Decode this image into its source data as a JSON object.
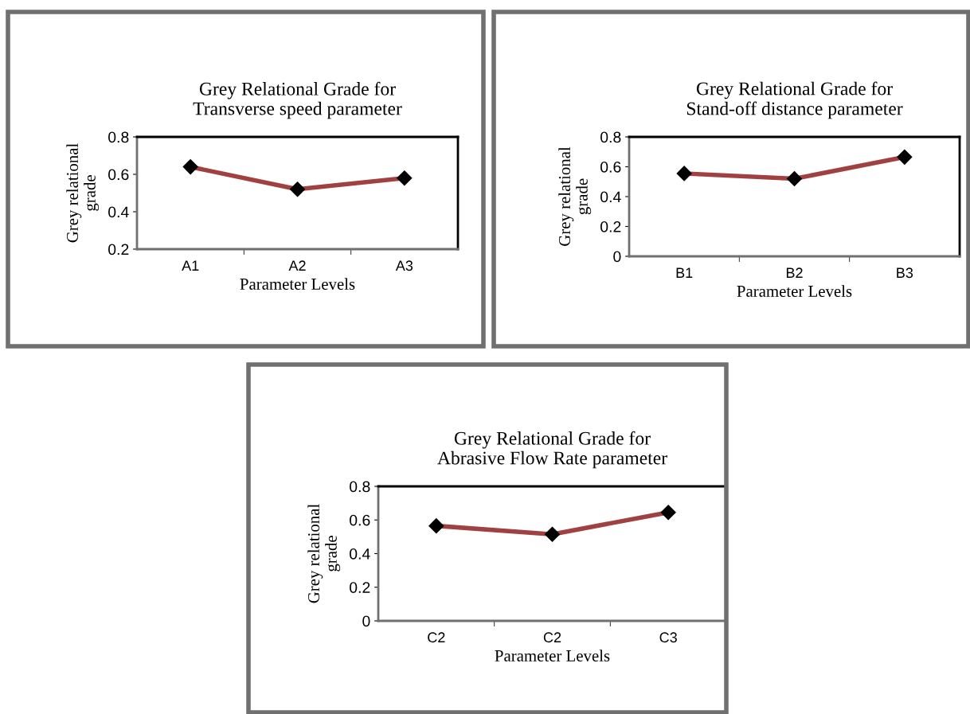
{
  "chart_data": [
    {
      "type": "line",
      "title": "Grey Relational Grade for\nTransverse speed parameter",
      "xlabel": "Parameter Levels",
      "ylabel": "Grey relational\ngrade",
      "categories": [
        "A1",
        "A2",
        "A3"
      ],
      "series": [
        {
          "color": "#a04040",
          "values": [
            0.64,
            0.52,
            0.58
          ]
        }
      ],
      "ylim": [
        0.2,
        0.8
      ],
      "yticks": [
        0.2,
        0.4,
        0.6,
        0.8
      ],
      "marker": "diamond",
      "grid": false,
      "legend": false
    },
    {
      "type": "line",
      "title": "Grey Relational Grade for\nStand-off distance parameter",
      "xlabel": "Parameter Levels",
      "ylabel": "Grey relational\ngrade",
      "categories": [
        "B1",
        "B2",
        "B3"
      ],
      "series": [
        {
          "color": "#a04040",
          "values": [
            0.555,
            0.52,
            0.665
          ]
        }
      ],
      "ylim": [
        0,
        0.8
      ],
      "yticks": [
        0,
        0.2,
        0.4,
        0.6,
        0.8
      ],
      "marker": "diamond",
      "grid": false,
      "legend": false
    },
    {
      "type": "line",
      "title": "Grey Relational Grade for\nAbrasive Flow Rate parameter",
      "xlabel": "Parameter Levels",
      "ylabel": "Grey relational\ngrade",
      "categories": [
        "C2",
        "C2",
        "C3"
      ],
      "series": [
        {
          "color": "#a04040",
          "values": [
            0.565,
            0.515,
            0.645
          ]
        }
      ],
      "ylim": [
        0,
        0.8
      ],
      "yticks": [
        0,
        0.2,
        0.4,
        0.6,
        0.8
      ],
      "marker": "diamond",
      "grid": false,
      "legend": false
    }
  ]
}
